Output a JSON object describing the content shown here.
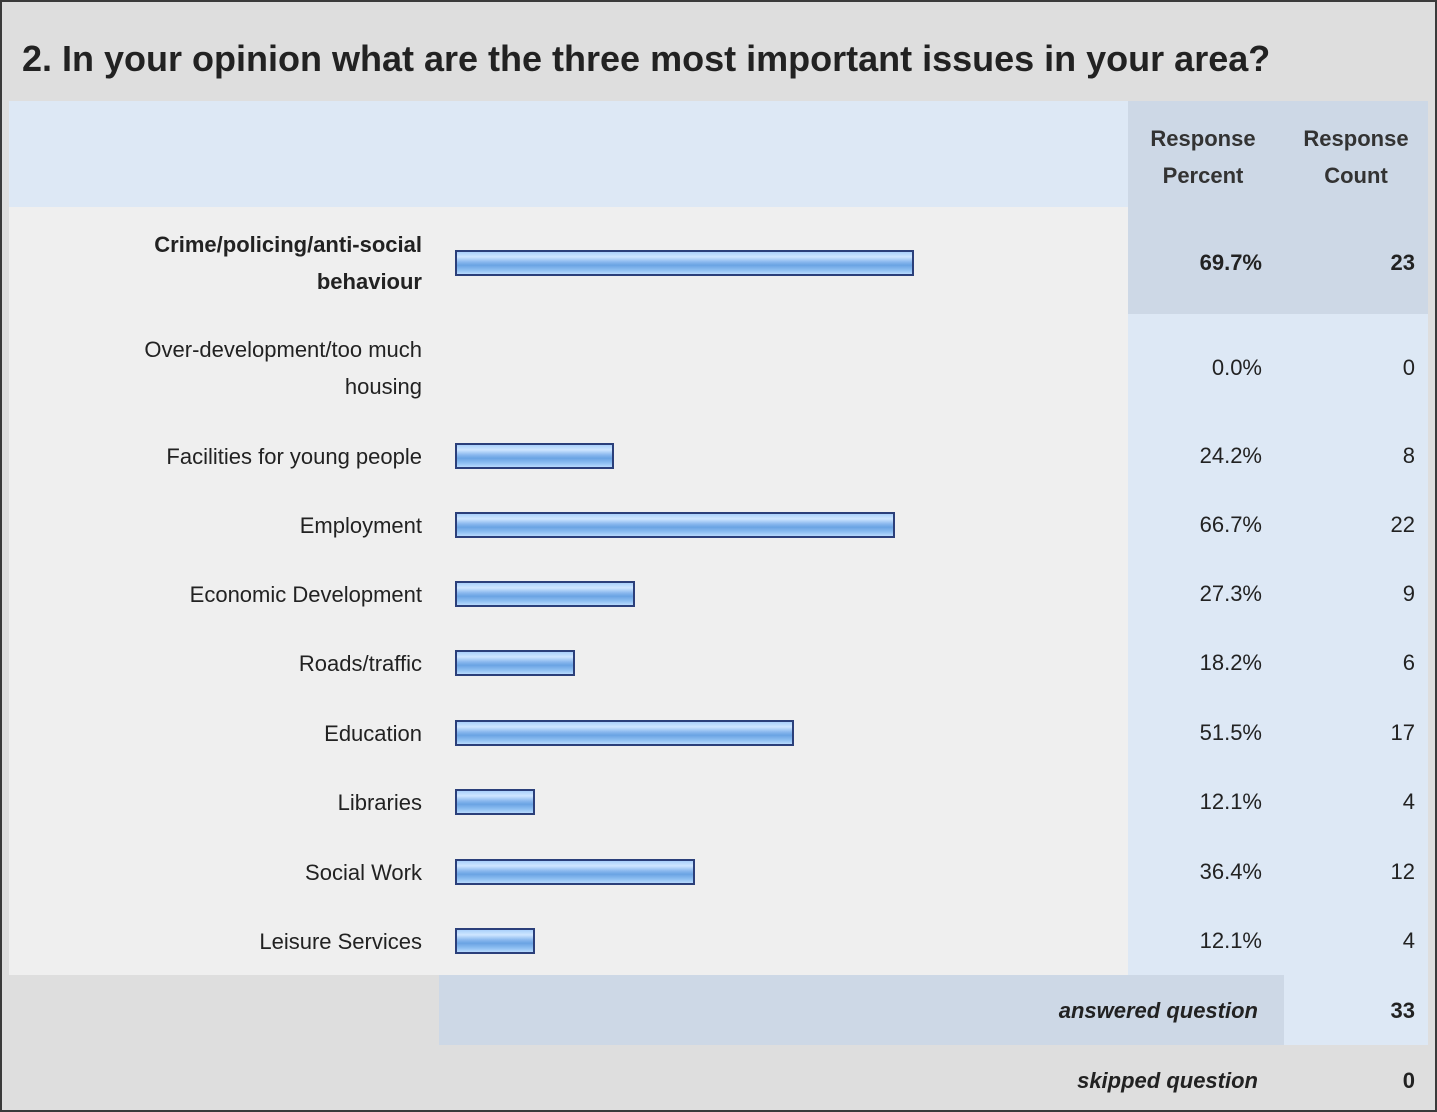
{
  "title": "2. In your opinion what are the three most important issues in your area?",
  "header": {
    "percent_line1": "Response",
    "percent_line2": "Percent",
    "count_line1": "Response",
    "count_line2": "Count"
  },
  "chart_data": {
    "type": "bar",
    "orientation": "horizontal",
    "categories": [
      "Crime/policing/anti-social behaviour",
      "Over-development/too much housing",
      "Facilities for young people",
      "Employment",
      "Economic Development",
      "Roads/traffic",
      "Education",
      "Libraries",
      "Social Work",
      "Leisure Services"
    ],
    "label_lines": [
      [
        "Crime/policing/anti-social",
        "behaviour"
      ],
      [
        "Over-development/too much",
        "housing"
      ],
      [
        "Facilities for young people"
      ],
      [
        "Employment"
      ],
      [
        "Economic Development"
      ],
      [
        "Roads/traffic"
      ],
      [
        "Education"
      ],
      [
        "Libraries"
      ],
      [
        "Social Work"
      ],
      [
        "Leisure Services"
      ]
    ],
    "values": [
      69.7,
      0.0,
      24.2,
      66.7,
      27.3,
      18.2,
      51.5,
      12.1,
      36.4,
      12.1
    ],
    "percent_labels": [
      "69.7%",
      "0.0%",
      "24.2%",
      "66.7%",
      "27.3%",
      "18.2%",
      "51.5%",
      "12.1%",
      "36.4%",
      "12.1%"
    ],
    "counts": [
      "23",
      "0",
      "8",
      "22",
      "9",
      "6",
      "17",
      "4",
      "12",
      "4"
    ],
    "highlight_index": 0,
    "xlim": [
      0,
      100
    ],
    "bar_color": "#8ab8ee",
    "bar_border": "#2b3f7a"
  },
  "footer": {
    "answered_label": "answered question",
    "answered_value": "33",
    "skipped_label": "skipped question",
    "skipped_value": "0"
  }
}
